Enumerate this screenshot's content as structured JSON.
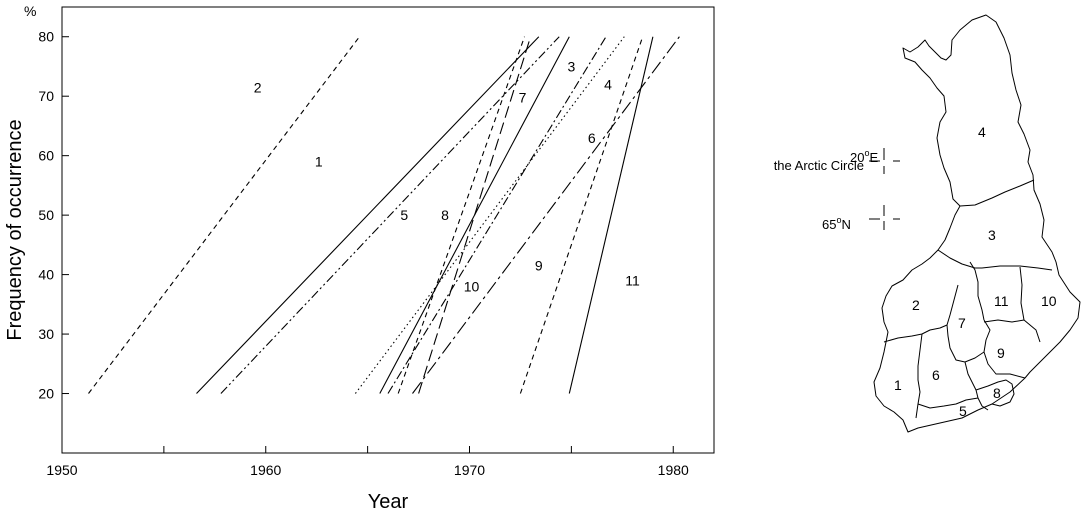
{
  "chart_data": {
    "type": "line",
    "xlabel": "Year",
    "ylabel": "Frequency of occurrence",
    "yunit": "%",
    "xlim": [
      1950,
      1982
    ],
    "ylim": [
      10,
      85
    ],
    "xticks": [
      1950,
      1960,
      1970,
      1980
    ],
    "xticks_minor": [
      1955,
      1965,
      1975
    ],
    "yticks": [
      20,
      30,
      40,
      50,
      60,
      70,
      80
    ],
    "grid": false,
    "legend": "none",
    "series": [
      {
        "name": "1",
        "dash": "solid",
        "x": [
          1956.6,
          1973.4
        ],
        "y": [
          20,
          80
        ]
      },
      {
        "name": "2",
        "dash": "dashed",
        "x": [
          1951.3,
          1964.6
        ],
        "y": [
          20,
          80
        ]
      },
      {
        "name": "3",
        "dash": "dashdot",
        "x": [
          1966.0,
          1976.7
        ],
        "y": [
          20,
          80
        ]
      },
      {
        "name": "4",
        "dash": "dotted",
        "x": [
          1964.4,
          1977.6
        ],
        "y": [
          20,
          80
        ]
      },
      {
        "name": "5",
        "dash": "dashdotdot",
        "x": [
          1957.8,
          1974.4
        ],
        "y": [
          20,
          80
        ]
      },
      {
        "name": "6",
        "dash": "longdashdot",
        "x": [
          1967.2,
          1980.3
        ],
        "y": [
          20,
          80
        ]
      },
      {
        "name": "7",
        "dash": "solid",
        "x": [
          1965.6,
          1974.9
        ],
        "y": [
          20,
          80
        ]
      },
      {
        "name": "8",
        "dash": "dashed",
        "x": [
          1966.5,
          1972.7
        ],
        "y": [
          20,
          80
        ]
      },
      {
        "name": "9",
        "dash": "dashed",
        "x": [
          1972.5,
          1978.5
        ],
        "y": [
          20,
          80
        ]
      },
      {
        "name": "10",
        "dash": "longdash",
        "x": [
          1967.5,
          1973.0
        ],
        "y": [
          20,
          80
        ]
      },
      {
        "name": "11",
        "dash": "solid",
        "x": [
          1974.9,
          1979.0
        ],
        "y": [
          20,
          80
        ]
      }
    ],
    "series_labels": [
      {
        "text": "1",
        "x": 1962.6,
        "y": 59
      },
      {
        "text": "2",
        "x": 1959.6,
        "y": 71.5
      },
      {
        "text": "3",
        "x": 1975.0,
        "y": 75
      },
      {
        "text": "4",
        "x": 1976.8,
        "y": 72
      },
      {
        "text": "5",
        "x": 1966.8,
        "y": 50
      },
      {
        "text": "6",
        "x": 1976.0,
        "y": 63
      },
      {
        "text": "7",
        "x": 1972.6,
        "y": 69.8
      },
      {
        "text": "8",
        "x": 1968.8,
        "y": 50
      },
      {
        "text": "9",
        "x": 1973.4,
        "y": 41.5
      },
      {
        "text": "10",
        "x": 1970.1,
        "y": 38
      },
      {
        "text": "11",
        "x": 1978.0,
        "y": 39
      }
    ]
  },
  "map": {
    "regions": [
      "1",
      "2",
      "3",
      "4",
      "5",
      "6",
      "7",
      "8",
      "9",
      "10",
      "11"
    ],
    "longitude_label": "20°E",
    "longitude_value": "20",
    "longitude_unit": "E",
    "arctic_circle_label": "the Arctic Circle",
    "latitude_label": "65°N",
    "latitude_value": "65",
    "latitude_unit": "N"
  }
}
